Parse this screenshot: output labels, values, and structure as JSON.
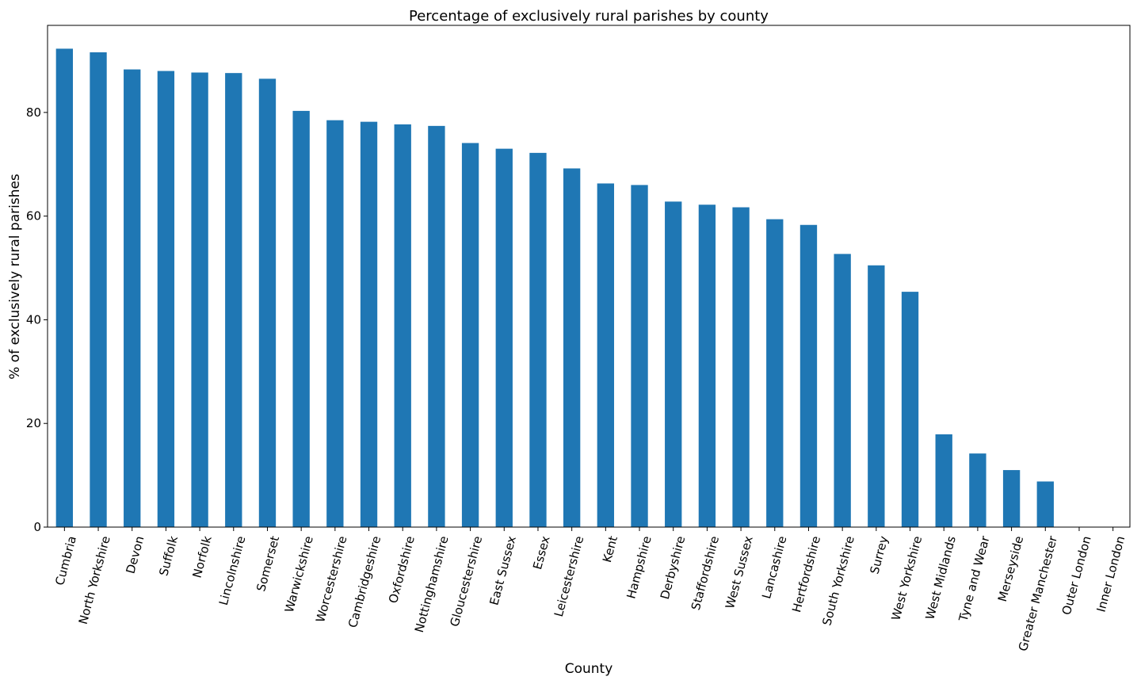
{
  "chart_data": {
    "type": "bar",
    "title": "Percentage of exclusively rural parishes by county",
    "xlabel": "County",
    "ylabel": "% of exclusively rural parishes",
    "ylim": [
      0,
      96.8
    ],
    "yticks": [
      0,
      20,
      40,
      60,
      80
    ],
    "grid": false,
    "legend": "none",
    "bar_color": "#1f77b4",
    "categories": [
      "Cumbria",
      "North Yorkshire",
      "Devon",
      "Suffolk",
      "Norfolk",
      "Lincolnshire",
      "Somerset",
      "Warwickshire",
      "Worcestershire",
      "Cambridgeshire",
      "Oxfordshire",
      "Nottinghamshire",
      "Gloucestershire",
      "East Sussex",
      "Essex",
      "Leicestershire",
      "Kent",
      "Hampshire",
      "Derbyshire",
      "Staffordshire",
      "West Sussex",
      "Lancashire",
      "Hertfordshire",
      "South Yorkshire",
      "Surrey",
      "West Yorkshire",
      "West Midlands",
      "Tyne and Wear",
      "Merseyside",
      "Greater Manchester",
      "Outer London",
      "Inner London"
    ],
    "values": [
      92.3,
      91.6,
      88.3,
      88.0,
      87.7,
      87.6,
      86.5,
      80.3,
      78.5,
      78.2,
      77.7,
      77.4,
      74.1,
      73.0,
      72.2,
      69.2,
      66.3,
      66.0,
      62.8,
      62.2,
      61.7,
      59.4,
      58.3,
      52.7,
      50.5,
      45.4,
      17.9,
      14.2,
      11.0,
      8.8,
      0,
      0
    ]
  }
}
